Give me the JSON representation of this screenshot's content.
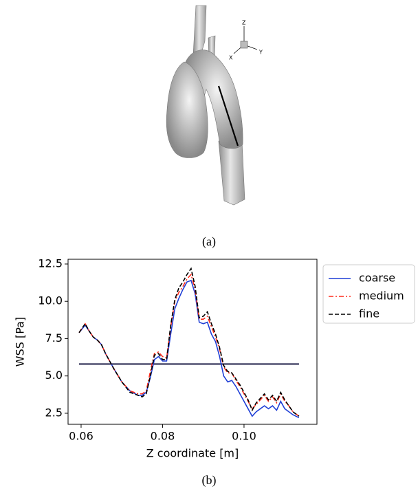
{
  "figure_a": {
    "caption": "(a)",
    "axes_triad": {
      "z": "Z",
      "x": "X",
      "y": "Y"
    }
  },
  "chart_data": {
    "type": "line",
    "caption": "(b)",
    "xlabel": "Z coordinate [m]",
    "ylabel": "WSS [Pa]",
    "xlim": [
      0.0568,
      0.1179
    ],
    "ylim": [
      1.76,
      12.82
    ],
    "xticks": [
      0.06,
      0.08,
      {
        "value": 0.1,
        "label": "0.10"
      }
    ],
    "yticks": [
      2.5,
      {
        "value": 5,
        "label": "5.0"
      },
      7.5,
      {
        "value": 10,
        "label": "10.0"
      },
      12.5
    ],
    "x": [
      0.0595,
      0.061,
      0.062,
      0.063,
      0.064,
      0.065,
      0.066,
      0.067,
      0.068,
      0.07,
      0.072,
      0.074,
      0.075,
      0.076,
      0.077,
      0.078,
      0.079,
      0.08,
      0.081,
      0.082,
      0.083,
      0.084,
      0.085,
      0.086,
      0.087,
      0.088,
      0.089,
      0.09,
      0.091,
      0.092,
      0.093,
      0.094,
      0.095,
      0.096,
      0.097,
      0.098,
      0.099,
      0.1,
      0.101,
      0.102,
      0.103,
      0.104,
      0.105,
      0.106,
      0.107,
      0.108,
      0.109,
      0.11,
      0.111,
      0.112,
      0.1135
    ],
    "series": [
      {
        "name": "coarse",
        "color": "#1f3fd6",
        "dash": "solid",
        "values": [
          7.9,
          8.4,
          8.0,
          7.6,
          7.4,
          7.1,
          6.5,
          6.0,
          5.5,
          4.6,
          4.0,
          3.7,
          3.7,
          3.9,
          4.9,
          6.1,
          6.3,
          6.0,
          6.0,
          7.8,
          9.5,
          10.2,
          10.8,
          11.3,
          11.4,
          10.5,
          8.6,
          8.5,
          8.6,
          7.8,
          7.3,
          6.3,
          5.0,
          4.6,
          4.7,
          4.3,
          3.8,
          3.3,
          2.8,
          2.3,
          2.6,
          2.8,
          3.0,
          2.8,
          3.0,
          2.7,
          3.3,
          2.8,
          2.6,
          2.4,
          2.2
        ]
      },
      {
        "name": "medium",
        "color": "#ff2a1a",
        "dash": "dashdot",
        "values": [
          7.9,
          8.5,
          8.0,
          7.6,
          7.4,
          7.1,
          6.5,
          6.0,
          5.5,
          4.6,
          4.0,
          3.8,
          3.8,
          4.0,
          5.3,
          6.5,
          6.6,
          6.3,
          6.2,
          8.3,
          10.0,
          10.6,
          11.0,
          11.5,
          11.8,
          10.8,
          8.8,
          8.8,
          9.0,
          8.3,
          7.6,
          6.8,
          5.6,
          5.2,
          5.2,
          4.7,
          4.3,
          3.8,
          3.3,
          2.8,
          3.1,
          3.4,
          3.7,
          3.3,
          3.6,
          3.2,
          3.8,
          3.3,
          3.0,
          2.6,
          2.3
        ]
      },
      {
        "name": "fine",
        "color": "#000000",
        "dash": "dashed",
        "values": [
          7.9,
          8.5,
          8.0,
          7.6,
          7.4,
          7.1,
          6.5,
          6.0,
          5.5,
          4.6,
          3.9,
          3.7,
          3.6,
          3.8,
          5.0,
          6.4,
          6.5,
          6.1,
          6.1,
          8.4,
          10.1,
          10.9,
          11.3,
          11.8,
          12.2,
          11.0,
          8.9,
          9.0,
          9.3,
          8.5,
          7.8,
          6.9,
          5.7,
          5.3,
          5.2,
          4.8,
          4.4,
          3.9,
          3.4,
          2.7,
          3.2,
          3.5,
          3.8,
          3.4,
          3.7,
          3.3,
          3.9,
          3.4,
          3.0,
          2.6,
          2.3
        ]
      }
    ],
    "reference_line": {
      "x": [
        0.0595,
        0.1135
      ],
      "y": [
        5.8,
        5.8
      ],
      "color": "#22224a"
    }
  }
}
